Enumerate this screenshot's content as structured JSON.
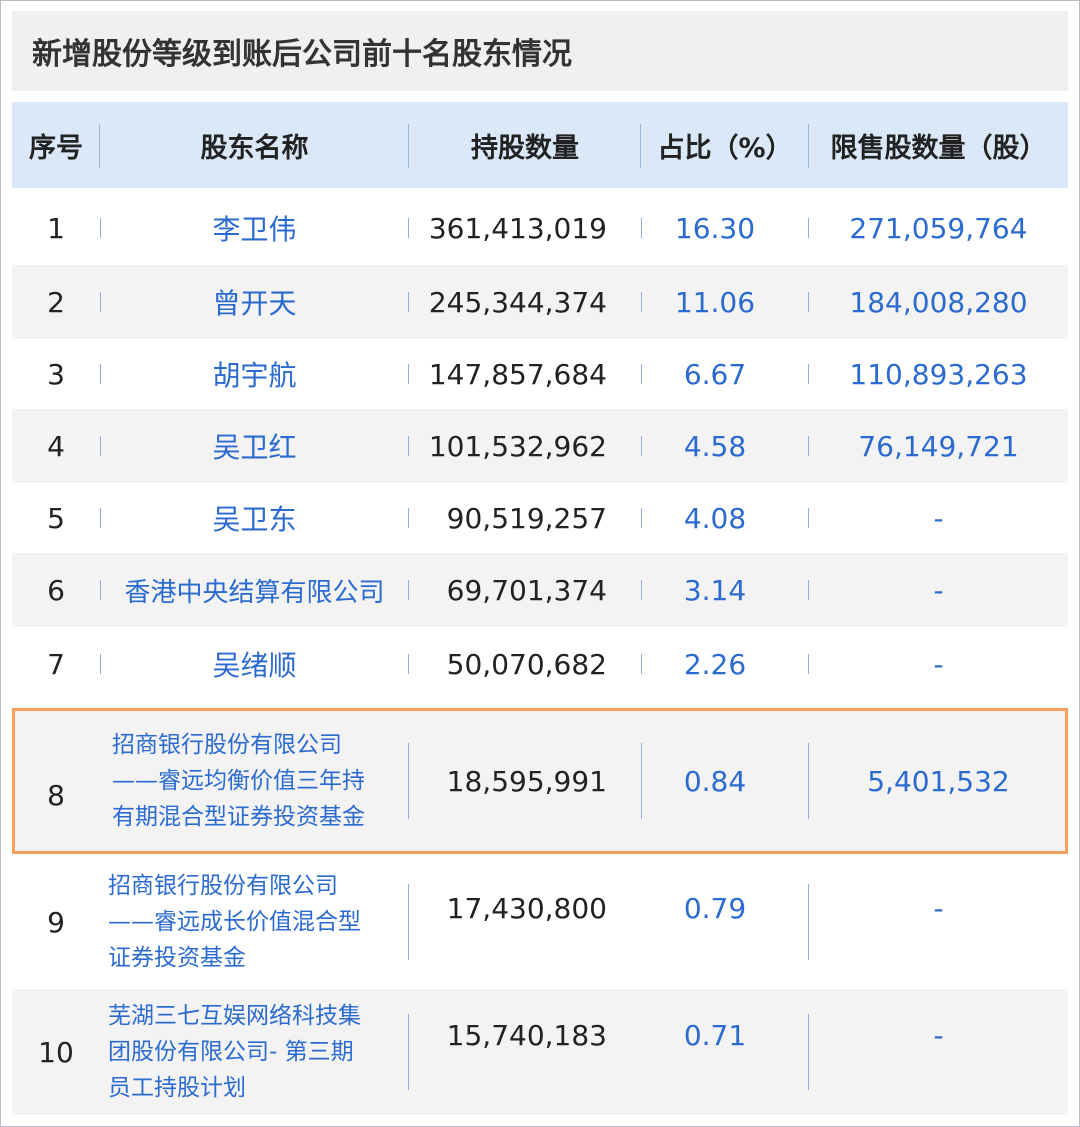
{
  "title": "新增股份等级到账后公司前十名股东情况",
  "headers": [
    "序号",
    "股东名称",
    "持股数量",
    "占比（%）",
    "限售股数量（股）"
  ],
  "rows": [
    {
      "no": "1",
      "name": [
        "李卫伟"
      ],
      "shares": "361,413,019",
      "ratio": "16.30",
      "restricted": "271,059,764"
    },
    {
      "no": "2",
      "name": [
        "曾开天"
      ],
      "shares": "245,344,374",
      "ratio": "11.06",
      "restricted": "184,008,280"
    },
    {
      "no": "3",
      "name": [
        "胡宇航"
      ],
      "shares": "147,857,684",
      "ratio": "6.67",
      "restricted": "110,893,263"
    },
    {
      "no": "4",
      "name": [
        "吴卫红"
      ],
      "shares": "101,532,962",
      "ratio": "4.58",
      "restricted": "76,149,721"
    },
    {
      "no": "5",
      "name": [
        "吴卫东"
      ],
      "shares": "90,519,257",
      "ratio": "4.08",
      "restricted": "-"
    },
    {
      "no": "6",
      "name": [
        "香港中央结算有限公司"
      ],
      "shares": "69,701,374",
      "ratio": "3.14",
      "restricted": "-"
    },
    {
      "no": "7",
      "name": [
        "吴绪顺"
      ],
      "shares": "50,070,682",
      "ratio": "2.26",
      "restricted": "-"
    },
    {
      "no": "8",
      "name": [
        "招商银行股份有限公司",
        "——睿远均衡价值三年持",
        "有期混合型证券投资基金"
      ],
      "shares": "18,595,991",
      "ratio": "0.84",
      "restricted": "5,401,532"
    },
    {
      "no": "9",
      "name": [
        "招商银行股份有限公司",
        "——睿远成长价值混合型",
        "证券投资基金"
      ],
      "shares": "17,430,800",
      "ratio": "0.79",
      "restricted": "-"
    },
    {
      "no": "10",
      "name": [
        "芜湖三七互娱网络科技集",
        "团股份有限公司- 第三期",
        "员工持股计划"
      ],
      "shares": "15,740,183",
      "ratio": "0.71",
      "restricted": "-"
    }
  ],
  "colors": {
    "header_bg": "#dbe8f8",
    "link_blue": "#2b6bd0",
    "highlight_border": "#f4a05a",
    "alt_row_bg": "#f3f3f3"
  }
}
